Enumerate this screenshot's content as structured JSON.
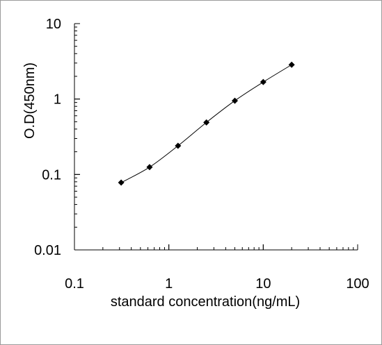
{
  "chart_data": {
    "type": "scatter",
    "xscale": "log",
    "yscale": "log",
    "xlabel": "standard concentration(ng/mL)",
    "ylabel": "O.D(450nm)",
    "xlim": [
      0.1,
      100
    ],
    "ylim": [
      0.01,
      10
    ],
    "x_ticks": [
      0.1,
      1,
      10,
      100
    ],
    "x_tick_labels": [
      "0.1",
      "1",
      "10",
      "100"
    ],
    "y_ticks": [
      0.01,
      0.1,
      1,
      10
    ],
    "y_tick_labels": [
      "0.01",
      "0.1",
      "1",
      "10"
    ],
    "grid": false,
    "legend": "none",
    "line": "smooth",
    "marker": "diamond",
    "color": "#000000",
    "series": [
      {
        "x": [
          0.3125,
          0.625,
          1.25,
          2.5,
          5,
          10,
          20
        ],
        "y": [
          0.078,
          0.125,
          0.24,
          0.49,
          0.95,
          1.68,
          2.85
        ]
      }
    ]
  }
}
